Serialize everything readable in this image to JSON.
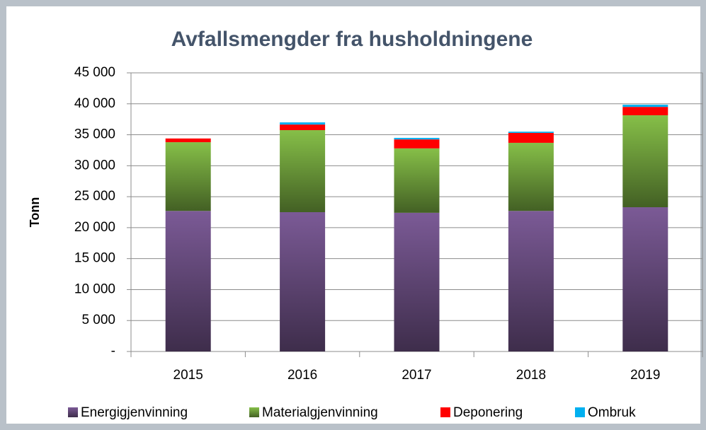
{
  "chart_data": {
    "type": "stacked_bar",
    "title": "Avfallsmengder fra husholdningene",
    "ylabel": "Tonn",
    "categories": [
      "2015",
      "2016",
      "2017",
      "2018",
      "2019"
    ],
    "series": [
      {
        "name": "Energigjenvinning",
        "color": "#7b5a96",
        "values": [
          22700,
          22500,
          22400,
          22700,
          23300
        ]
      },
      {
        "name": "Materialgjenvinning",
        "color": "#86bf48",
        "values": [
          11100,
          13250,
          10400,
          11000,
          14850
        ]
      },
      {
        "name": "Deponering",
        "color": "#ff0000",
        "values": [
          600,
          900,
          1450,
          1600,
          1350
        ]
      },
      {
        "name": "Ombruk",
        "color": "#00b0f0",
        "values": [
          0,
          350,
          250,
          200,
          350
        ]
      }
    ],
    "ylim": [
      0,
      45000
    ],
    "yticks": [
      {
        "value": 0,
        "label": "-"
      },
      {
        "value": 5000,
        "label": "5 000"
      },
      {
        "value": 10000,
        "label": "10 000"
      },
      {
        "value": 15000,
        "label": "15 000"
      },
      {
        "value": 20000,
        "label": "20 000"
      },
      {
        "value": 25000,
        "label": "25 000"
      },
      {
        "value": 30000,
        "label": "30 000"
      },
      {
        "value": 35000,
        "label": "35 000"
      },
      {
        "value": 40000,
        "label": "40 000"
      },
      {
        "value": 45000,
        "label": "45 000"
      }
    ],
    "grid": true,
    "legend": "bottom"
  }
}
